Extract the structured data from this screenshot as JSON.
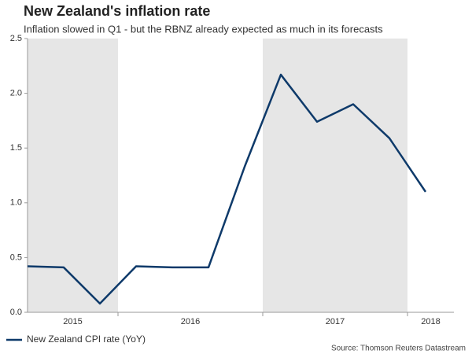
{
  "chart_data": {
    "type": "line",
    "title": "New Zealand's inflation rate",
    "subtitle": "Inflation slowed in Q1 - but the RBNZ already expected as much in its forecasts",
    "categories": [
      "2015",
      null,
      null,
      "2016",
      null,
      null,
      null,
      "2017",
      null,
      null,
      null,
      "2018"
    ],
    "series": [
      {
        "name": "New Zealand CPI rate (YoY)",
        "color": "#0e3a6a",
        "values": [
          0.42,
          0.41,
          0.08,
          0.42,
          0.41,
          0.41,
          1.33,
          2.17,
          1.74,
          1.9,
          1.59,
          1.1
        ]
      }
    ],
    "ylim": [
      0,
      2.5
    ],
    "yticks": [
      {
        "value": 0,
        "label": "0.0"
      },
      0.5,
      {
        "value": 1,
        "label": "1.0"
      },
      1.5,
      {
        "value": 2,
        "label": "2.0"
      },
      2.5
    ],
    "band_shading": "alternate",
    "band_color": "#e6e6e6",
    "legend": "bottom-left",
    "source": "Source: Thomson Reuters Datastream"
  }
}
